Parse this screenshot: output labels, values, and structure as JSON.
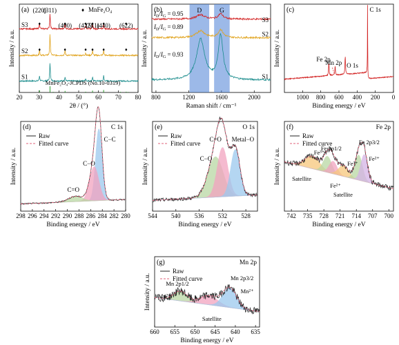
{
  "chart_data": [
    {
      "panel": "(a)",
      "type": "line",
      "xlabel": "2θ / (°)",
      "ylabel": "Intensity / a.u.",
      "xlim": [
        20,
        80
      ],
      "xticks": [
        20,
        30,
        40,
        50,
        60,
        70,
        80
      ],
      "series": [
        {
          "name": "S1",
          "color": "#1a8c8c",
          "baseline": 0.13,
          "peaks": [
            [
              30.2,
              0.06
            ],
            [
              35.5,
              0.22
            ],
            [
              43.1,
              0.05
            ],
            [
              53.5,
              0.03
            ],
            [
              57.0,
              0.05
            ],
            [
              62.6,
              0.06
            ]
          ]
        },
        {
          "name": "S2",
          "color": "#e0a21a",
          "baseline": 0.42,
          "peaks": [
            [
              30.2,
              0.07
            ],
            [
              35.5,
              0.25
            ],
            [
              43.1,
              0.06
            ],
            [
              53.5,
              0.03
            ],
            [
              57.0,
              0.06
            ],
            [
              62.6,
              0.06
            ]
          ]
        },
        {
          "name": "S3",
          "color": "#d22020",
          "baseline": 0.72,
          "peaks": [
            [
              30.2,
              0.07
            ],
            [
              35.5,
              0.18
            ],
            [
              43.1,
              0.06
            ],
            [
              53.5,
              0.04
            ],
            [
              57.0,
              0.06
            ],
            [
              62.6,
              0.05
            ]
          ]
        }
      ],
      "peak_labels": [
        {
          "text": "(220)",
          "x": 30.2
        },
        {
          "text": "(311)",
          "x": 35.5
        },
        {
          "text": "(400)",
          "x": 43.1
        },
        {
          "text": "(422)",
          "x": 53.5
        },
        {
          "text": "(511)",
          "x": 57.0
        },
        {
          "text": "(440)",
          "x": 62.6
        },
        {
          "text": "(622)",
          "x": 74.0
        }
      ],
      "marker_x": [
        30.2,
        35.5,
        43.1,
        53.5,
        57.0,
        62.6,
        74.0
      ],
      "legend_marker": "MnFe₂O₄",
      "reference_label": "MnFe₂O₄-JCPDS (No.10-0319)",
      "reference_lines": [
        [
          18.2,
          0.15
        ],
        [
          30.2,
          0.35
        ],
        [
          35.5,
          1.0
        ],
        [
          37.1,
          0.1
        ],
        [
          43.1,
          0.25
        ],
        [
          53.5,
          0.12
        ],
        [
          57.0,
          0.3
        ],
        [
          62.6,
          0.4
        ],
        [
          71.1,
          0.1
        ],
        [
          74.0,
          0.12
        ],
        [
          75.0,
          0.08
        ]
      ]
    },
    {
      "panel": "(b)",
      "type": "line",
      "xlabel": "Raman shift / cm⁻¹",
      "ylabel": "Intensity / a.u.",
      "xlim": [
        750,
        2200
      ],
      "xticks": [
        800,
        1200,
        1600,
        2000
      ],
      "bands": [
        {
          "label": "D",
          "x0": 1210,
          "x1": 1450
        },
        {
          "label": "G",
          "x0": 1510,
          "x1": 1700
        }
      ],
      "series": [
        {
          "name": "S1",
          "color": "#1a8c8c",
          "ratio": "0.93",
          "baseline": 0.14,
          "d": 0.46,
          "g": 0.5
        },
        {
          "name": "S2",
          "color": "#e0a21a",
          "ratio": "0.89",
          "baseline": 0.62,
          "d": 0.08,
          "g": 0.09
        },
        {
          "name": "S3",
          "color": "#d22020",
          "ratio": "0.95",
          "baseline": 0.83,
          "d": 0.05,
          "g": 0.06
        }
      ]
    },
    {
      "panel": "(c)",
      "type": "line",
      "xlabel": "Binding energy / eV",
      "ylabel": "Intensity / a.u.",
      "xlim": [
        1200,
        0
      ],
      "xticks": [
        1000,
        800,
        600,
        400,
        200,
        0
      ],
      "series": [
        {
          "name": "",
          "color": "#d22020"
        }
      ],
      "peaks": [
        {
          "label": "C 1s",
          "x": 285,
          "h": 0.95
        },
        {
          "label": "O 1s",
          "x": 531,
          "h": 0.2
        },
        {
          "label": "Mn 2p",
          "x": 642,
          "h": 0.1
        },
        {
          "label": "Fe 2p",
          "x": 711,
          "h": 0.14
        }
      ]
    },
    {
      "panel": "(d)",
      "type": "line",
      "title": "C 1s",
      "xlabel": "Binding energy / eV",
      "ylabel": "Intensity / a.u.",
      "xlim": [
        298,
        280
      ],
      "xticks": [
        298,
        296,
        294,
        292,
        290,
        288,
        286,
        284,
        282,
        280
      ],
      "legend": [
        "Raw",
        "Fitted curve"
      ],
      "components": [
        {
          "label": "C−C",
          "x": 284.6,
          "h": 0.8,
          "w": 0.55,
          "color": "#9cc9ee"
        },
        {
          "label": "C−O",
          "x": 285.4,
          "h": 0.38,
          "w": 0.8,
          "color": "#f2a3c0"
        },
        {
          "label": "C=O",
          "x": 288.6,
          "h": 0.06,
          "w": 1.2,
          "color": "#b9d7a3"
        }
      ]
    },
    {
      "panel": "(e)",
      "type": "line",
      "title": "O 1s",
      "xlabel": "Binding energy / eV",
      "ylabel": "Intensity / a.u.",
      "xlim": [
        544,
        526
      ],
      "xticks": [
        544,
        540,
        536,
        532,
        528
      ],
      "legend": [
        "Raw",
        "Fitted curve"
      ],
      "components": [
        {
          "label": "C−O",
          "x": 533.2,
          "h": 0.45,
          "w": 1.3,
          "color": "#b9d7a3"
        },
        {
          "label": "C=O",
          "x": 532.0,
          "h": 0.55,
          "w": 0.9,
          "color": "#f2a3c0"
        },
        {
          "label": "Metal−O",
          "x": 529.8,
          "h": 0.52,
          "w": 0.8,
          "color": "#9cc9ee"
        }
      ]
    },
    {
      "panel": "(f)",
      "type": "line",
      "title": "Fe 2p",
      "xlabel": "Binding energy / eV",
      "ylabel": "Intensity / a.u.",
      "xlim": [
        745,
        698
      ],
      "xticks": [
        742,
        735,
        728,
        721,
        714,
        707,
        700
      ],
      "legend": [
        "Raw",
        "Fitted curve"
      ],
      "labels": [
        "Fe 2p1/2",
        "Fe 2p3/2",
        "Fe³⁺",
        "Fe³⁺",
        "Fe²⁺",
        "Fe²⁺",
        "Satellite",
        "Satellite"
      ],
      "components": [
        {
          "x": 733.0,
          "h": 0.14,
          "w": 3.2,
          "color": "#f7c77c"
        },
        {
          "x": 726.5,
          "h": 0.18,
          "w": 1.8,
          "color": "#b9d7a3"
        },
        {
          "x": 724.0,
          "h": 0.14,
          "w": 1.7,
          "color": "#f2a3c0"
        },
        {
          "x": 719.5,
          "h": 0.12,
          "w": 2.2,
          "color": "#f7c77c"
        },
        {
          "x": 713.0,
          "h": 0.28,
          "w": 1.6,
          "color": "#b9d7a3"
        },
        {
          "x": 710.6,
          "h": 0.3,
          "w": 1.5,
          "color": "#d5b3e6"
        }
      ]
    },
    {
      "panel": "(g)",
      "type": "line",
      "title": "Mn 2p",
      "xlabel": "Binding energy / eV",
      "ylabel": "Intensity / a.u.",
      "xlim": [
        660,
        634
      ],
      "xticks": [
        660,
        655,
        650,
        645,
        640,
        635
      ],
      "legend": [
        "Raw",
        "Fitted curve"
      ],
      "labels": [
        "Mn 2p1/2",
        "Mn 2p3/2",
        "Mn²⁺",
        "Mn²⁺",
        "Satellite"
      ],
      "components": [
        {
          "x": 653.6,
          "h": 0.14,
          "w": 1.7,
          "color": "#b9d7a3"
        },
        {
          "x": 646.5,
          "h": 0.13,
          "w": 2.2,
          "color": "#f2a3c0"
        },
        {
          "x": 641.4,
          "h": 0.28,
          "w": 1.7,
          "color": "#9cc9ee"
        }
      ]
    }
  ]
}
